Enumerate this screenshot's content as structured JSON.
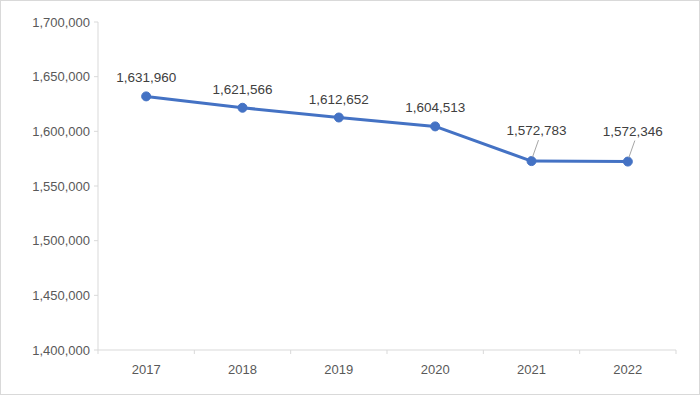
{
  "chart_data": {
    "type": "line",
    "categories": [
      "2017",
      "2018",
      "2019",
      "2020",
      "2021",
      "2022"
    ],
    "values": [
      1631960,
      1621566,
      1612652,
      1604513,
      1572783,
      1572346
    ],
    "value_labels": [
      "1,631,960",
      "1,621,566",
      "1,612,652",
      "1,604,513",
      "1,572,783",
      "1,572,346"
    ],
    "color": "#4472c4",
    "marker": "circle",
    "ylim": [
      1400000,
      1700000
    ],
    "yticks": [
      {
        "value": 1400000,
        "label": "1,400,000"
      },
      {
        "value": 1450000,
        "label": "1,450,000"
      },
      {
        "value": 1500000,
        "label": "1,500,000"
      },
      {
        "value": 1550000,
        "label": "1,550,000"
      },
      {
        "value": 1600000,
        "label": "1,600,000"
      },
      {
        "value": 1650000,
        "label": "1,650,000"
      },
      {
        "value": 1700000,
        "label": "1,700,000"
      }
    ],
    "grid": false,
    "data_labels": true
  }
}
